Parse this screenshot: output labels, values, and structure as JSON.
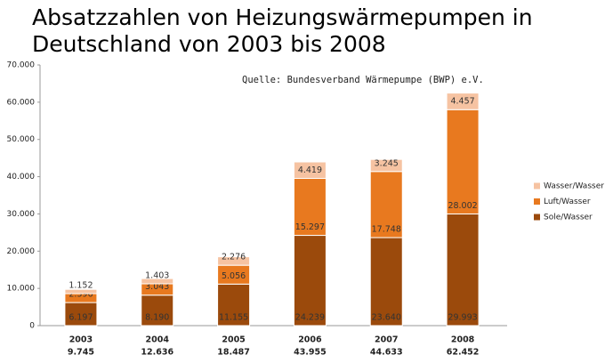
{
  "chart_data": {
    "type": "stacked_bar",
    "title_lines": [
      "Absatzzahlen von Heizungswärmepumpen in",
      "Deutschland von 2003 bis 2008"
    ],
    "source": "Quelle: Bundesverband Wärmepumpe (BWP) e.V.",
    "categories": [
      "2003",
      "2004",
      "2005",
      "2006",
      "2007",
      "2008"
    ],
    "totals": {
      "values": [
        9745,
        12636,
        18487,
        43955,
        44633,
        62452
      ],
      "value_labels": [
        "9.745",
        "12.636",
        "18.487",
        "43.955",
        "44.633",
        "62.452"
      ]
    },
    "series": [
      {
        "name": "Sole/Wasser",
        "color": "#9b4a0c",
        "values": [
          6197,
          8190,
          11155,
          24239,
          23640,
          29993
        ],
        "value_labels": [
          "6.197",
          "8.190",
          "11.155",
          "24.239",
          "23.640",
          "29.993"
        ]
      },
      {
        "name": "Luft/Wasser",
        "color": "#e8791f",
        "values": [
          2396,
          3043,
          5056,
          15297,
          17748,
          28002
        ],
        "value_labels": [
          "2.396",
          "3.043",
          "5.056",
          "15.297",
          "17.748",
          "28.002"
        ]
      },
      {
        "name": "Wasser/Wasser",
        "color": "#f6c3a2",
        "values": [
          1152,
          1403,
          2276,
          4419,
          3245,
          4457
        ],
        "value_labels": [
          "1.152",
          "1.403",
          "2.276",
          "4.419",
          "3.245",
          "4.457"
        ]
      }
    ],
    "ylim": [
      0,
      70000
    ],
    "yticks": [
      0,
      {
        "value": 10000,
        "label": "10.000"
      },
      {
        "value": 20000,
        "label": "20.000"
      },
      {
        "value": 30000,
        "label": "30.000"
      },
      {
        "value": 40000,
        "label": "40.000"
      },
      {
        "value": 50000,
        "label": "50.000"
      },
      {
        "value": 60000,
        "label": "60.000"
      },
      {
        "value": 70000,
        "label": "70.000"
      }
    ],
    "legend": "right"
  }
}
